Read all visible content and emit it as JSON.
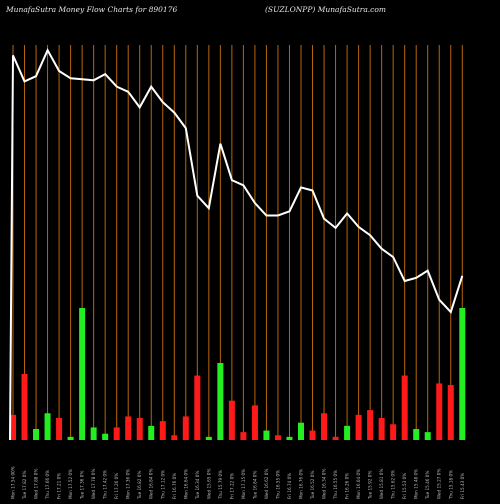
{
  "header": {
    "left": "MunafaSutra  Money Flow  Charts for 890176",
    "right": "(SUZLONPP) MunafaSutra.com"
  },
  "chart_data": {
    "type": "bar+line",
    "title": "MunafaSutra  Money Flow  Charts for 890176",
    "subtitle": "(SUZLONPP) MunafaSutra.com",
    "categories": [
      "Mon 17.54 00%",
      "Tue 17.82 0%",
      "Wed 17.88 0%",
      "Thu 17.66 0%",
      "Fri 17.21 0%",
      "Mon 17.52 0%",
      "Tue 17.36 0%",
      "Wed 17.78 0%",
      "Thu 17.42 0%",
      "Fri 17.26 0%",
      "Mon 17.36 0%",
      "Tue 16.82 0%",
      "Wed 16.84 0%",
      "Thu 17.12 0%",
      "Fri 16.76 0%",
      "Mon 16.64 0%",
      "Tue 16.34 0%",
      "Wed 15.65 0%",
      "Thu 15.79 0%",
      "Fri 17.22 0%",
      "Mon 17.15 0%",
      "Tue 16.84 0%",
      "Wed 16.62 0%",
      "Thu 16.55 0%",
      "Fri 16.74 0%",
      "Mon 16.76 0%",
      "Tue 16.52 0%",
      "Wed 16.34 0%",
      "Thu 16.55 0%",
      "Fri 16.26 0%",
      "Mon 16.04 0%",
      "Tue 15.92 0%",
      "Wed 15.81 0%",
      "Thu 15.62 0%",
      "Fri 15.53 0%",
      "Mon 15.48 0%",
      "Tue 15.46 0%",
      "Wed 15.27 0%",
      "Thu 15.18 0%",
      "Fri 15.43 0%"
    ],
    "price_line": [
      17.9,
      17.65,
      17.7,
      17.95,
      17.75,
      17.68,
      17.67,
      17.66,
      17.72,
      17.6,
      17.55,
      17.4,
      17.6,
      17.45,
      17.35,
      17.2,
      16.55,
      16.43,
      17.05,
      16.7,
      16.65,
      16.48,
      16.36,
      16.36,
      16.4,
      16.63,
      16.6,
      16.33,
      16.24,
      16.38,
      16.25,
      16.17,
      16.04,
      15.96,
      15.73,
      15.76,
      15.83,
      15.55,
      15.43,
      15.78
    ],
    "money_flow": {
      "values": [
        16,
        42,
        7,
        17,
        14,
        2,
        84,
        8,
        4,
        8,
        15,
        14,
        9,
        12,
        3,
        15,
        41,
        2,
        49,
        25,
        5,
        22,
        6,
        3,
        2,
        11,
        6,
        17,
        2,
        9,
        16,
        19,
        14,
        10,
        41,
        7,
        5,
        36,
        35,
        84
      ],
      "direction": [
        "red",
        "red",
        "green",
        "green",
        "red",
        "green",
        "green",
        "green",
        "green",
        "red",
        "red",
        "red",
        "green",
        "red",
        "red",
        "red",
        "red",
        "green",
        "green",
        "red",
        "red",
        "red",
        "green",
        "red",
        "green",
        "green",
        "red",
        "red",
        "red",
        "green",
        "red",
        "red",
        "red",
        "red",
        "red",
        "green",
        "green",
        "red",
        "red",
        "green"
      ]
    },
    "colors": {
      "background": "#000000",
      "line": "#ffffff",
      "gridline": "#b8660b",
      "up_bar": "#22ee22",
      "down_bar": "#ff1a1a",
      "label": "#bbbbbb"
    },
    "grid": true,
    "legend": "none"
  }
}
